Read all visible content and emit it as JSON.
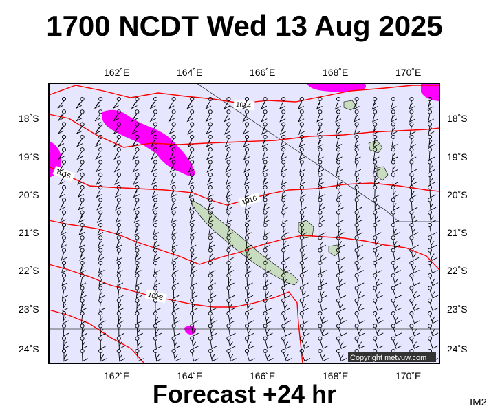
{
  "title": "1700 NCDT Wed 13 Aug 2025",
  "footer": "Forecast +24 hr",
  "image_tag": "IM2",
  "copyright": "Copyright metvuw.com",
  "map": {
    "lon_range": [
      160.2,
      170.9
    ],
    "lat_range": [
      -24.4,
      -17.4
    ],
    "lon_ticks": [
      "162˚E",
      "164˚E",
      "166˚E",
      "168˚E",
      "170˚E"
    ],
    "lat_ticks": [
      "18˚S",
      "19˚S",
      "20˚S",
      "21˚S",
      "22˚S",
      "23˚S",
      "24˚S"
    ],
    "colors": {
      "ocean": "#e6e6ff",
      "land": "#c8dcc0",
      "precip": "#ff00ff",
      "isobar": "#ff0000",
      "wind": "#000000"
    },
    "isobar_labels": [
      "1014",
      "1016",
      "1016",
      "1018"
    ]
  }
}
